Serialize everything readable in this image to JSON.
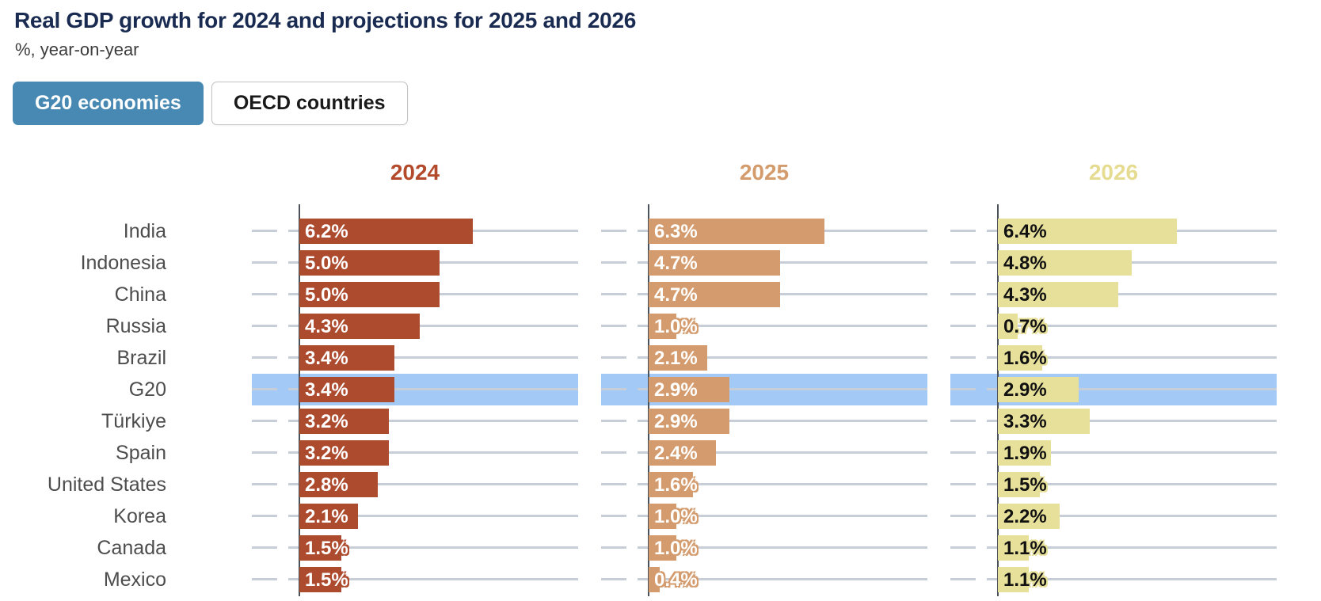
{
  "header": {
    "title": "Real GDP growth for 2024 and projections for 2025 and 2026",
    "subtitle": "%, year-on-year"
  },
  "toggle": {
    "options": [
      {
        "label": "G20 economies",
        "active": true
      },
      {
        "label": "OECD countries",
        "active": false
      }
    ],
    "active_bg": "#4789b3",
    "active_text": "#ffffff"
  },
  "chart_data": {
    "type": "bar",
    "orientation": "horizontal",
    "title": "Real GDP growth for 2024 and projections for 2025 and 2026",
    "subtitle": "%, year-on-year",
    "value_suffix": "%",
    "xlim": [
      0,
      7
    ],
    "grid": "per-row horizontal gridlines",
    "legend_position": "column headers above each panel",
    "categories": [
      "India",
      "Indonesia",
      "China",
      "Russia",
      "Brazil",
      "G20",
      "Türkiye",
      "Spain",
      "United States",
      "Korea",
      "Canada",
      "Mexico"
    ],
    "highlighted_category": "G20",
    "highlight_color": "#a3c9f6",
    "series": [
      {
        "name": "2024",
        "color": "#ad4b2e",
        "header_color": "#b24a2b",
        "label_color": "#ffffff",
        "values": [
          6.2,
          5.0,
          5.0,
          4.3,
          3.4,
          3.4,
          3.2,
          3.2,
          2.8,
          2.1,
          1.5,
          1.5
        ]
      },
      {
        "name": "2025",
        "color": "#d49c6e",
        "header_color": "#d49b6d",
        "label_color": "#ffffff",
        "values": [
          6.3,
          4.7,
          4.7,
          1.0,
          2.1,
          2.9,
          2.9,
          2.4,
          1.6,
          1.0,
          1.0,
          0.4
        ]
      },
      {
        "name": "2026",
        "color": "#e6e09b",
        "header_color": "#e5dc92",
        "label_color": "#111111",
        "values": [
          6.4,
          4.8,
          4.3,
          0.7,
          1.6,
          2.9,
          3.3,
          1.9,
          1.5,
          2.2,
          1.1,
          1.1
        ]
      }
    ]
  }
}
